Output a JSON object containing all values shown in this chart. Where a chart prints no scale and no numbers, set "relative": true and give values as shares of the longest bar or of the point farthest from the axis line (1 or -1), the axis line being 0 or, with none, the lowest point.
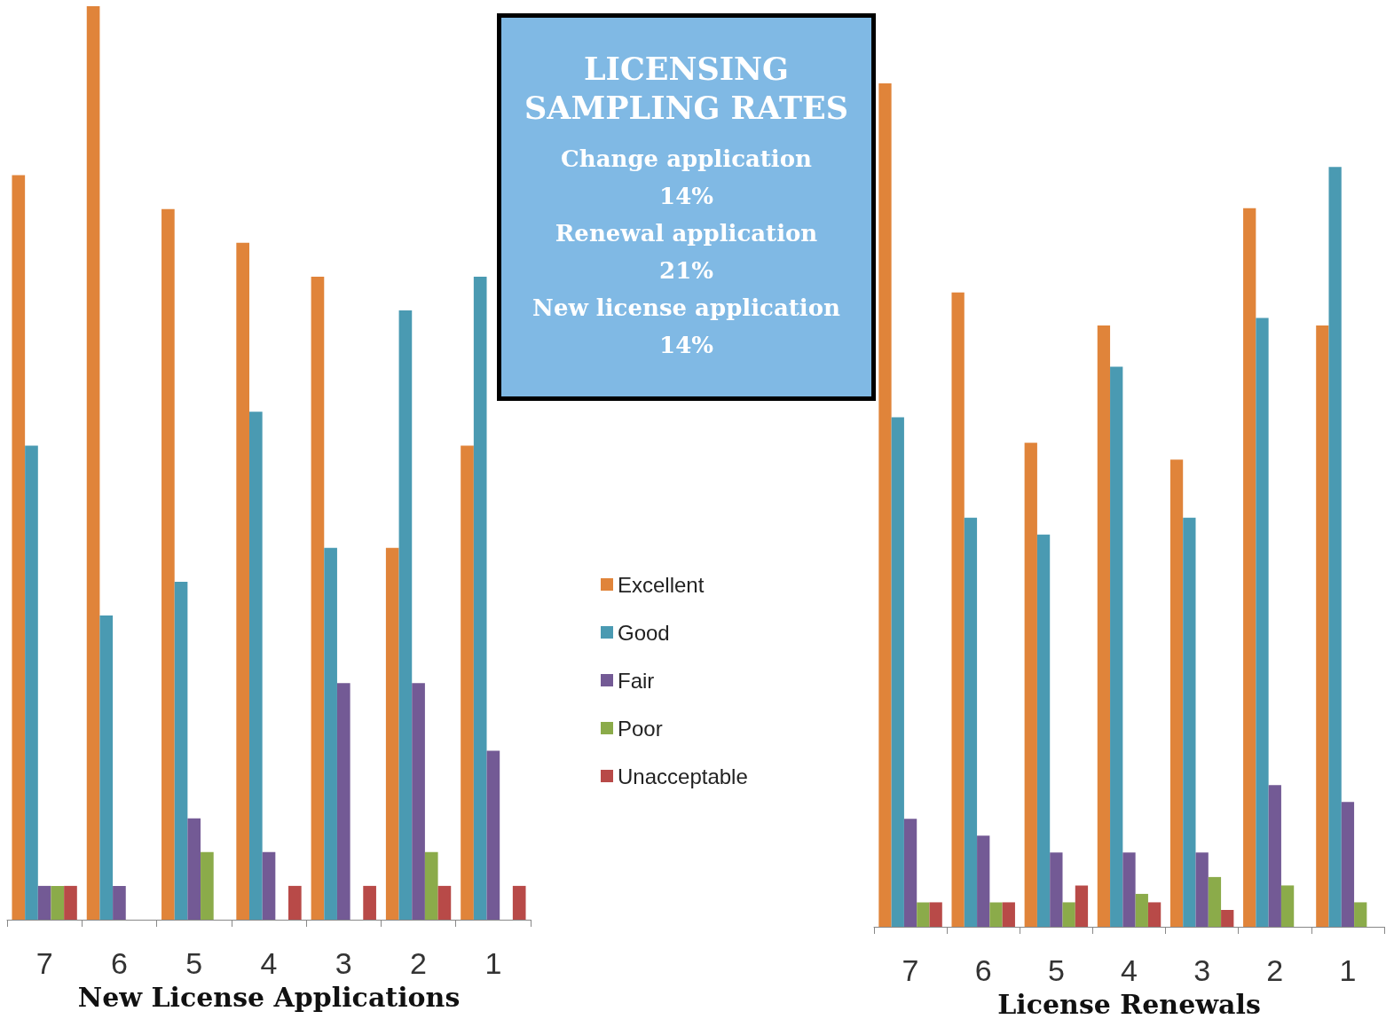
{
  "chart_data": [
    {
      "type": "bar",
      "relative": true,
      "xlabel": "New License Applications",
      "categories": [
        "7",
        "6",
        "5",
        "4",
        "3",
        "2",
        "1"
      ],
      "legend": "right",
      "grid": false,
      "series": [
        {
          "name": "Excellent",
          "color": "#e0843a",
          "values": [
            0.815,
            1,
            0.778,
            0.741,
            0.704,
            0.407,
            0.519
          ]
        },
        {
          "name": "Good",
          "color": "#4a9ab2",
          "values": [
            0.519,
            0.333,
            0.37,
            0.556,
            0.407,
            0.667,
            0.704
          ]
        },
        {
          "name": "Fair",
          "color": "#735a95",
          "values": [
            0.037,
            0.037,
            0.111,
            0.074,
            0.259,
            0.259,
            0.185
          ]
        },
        {
          "name": "Poor",
          "color": "#8bab4a",
          "values": [
            0.037,
            0,
            0.074,
            0,
            0,
            0.074,
            0
          ]
        },
        {
          "name": "Unacceptable",
          "color": "#b84a48",
          "values": [
            0.037,
            0,
            0,
            0.037,
            0.037,
            0.037,
            0.037
          ]
        }
      ]
    },
    {
      "type": "other",
      "title": "LICENSING SAMPLING RATES",
      "annotations": [
        "Change application",
        "14%",
        "Renewal application",
        "21%",
        "New license application",
        "14%"
      ]
    },
    {
      "type": "bar",
      "relative": true,
      "xlabel": "License Renewals",
      "categories": [
        "7",
        "6",
        "5",
        "4",
        "3",
        "2",
        "1"
      ],
      "legend": false,
      "grid": false,
      "series": [
        {
          "color": "#e0843a",
          "values": [
            1,
            0.752,
            0.574,
            0.713,
            0.554,
            0.852,
            0.713
          ]
        },
        {
          "color": "#4a9ab2",
          "values": [
            0.604,
            0.485,
            0.465,
            0.664,
            0.485,
            0.722,
            0.901
          ]
        },
        {
          "color": "#735a95",
          "values": [
            0.128,
            0.108,
            0.088,
            0.088,
            0.088,
            0.168,
            0.148
          ]
        },
        {
          "color": "#8bab4a",
          "values": [
            0.029,
            0.029,
            0.029,
            0.039,
            0.059,
            0.049,
            0.029
          ]
        },
        {
          "color": "#b84a48",
          "values": [
            0.029,
            0.029,
            0.049,
            0.029,
            0.02,
            0,
            0
          ]
        }
      ]
    }
  ]
}
